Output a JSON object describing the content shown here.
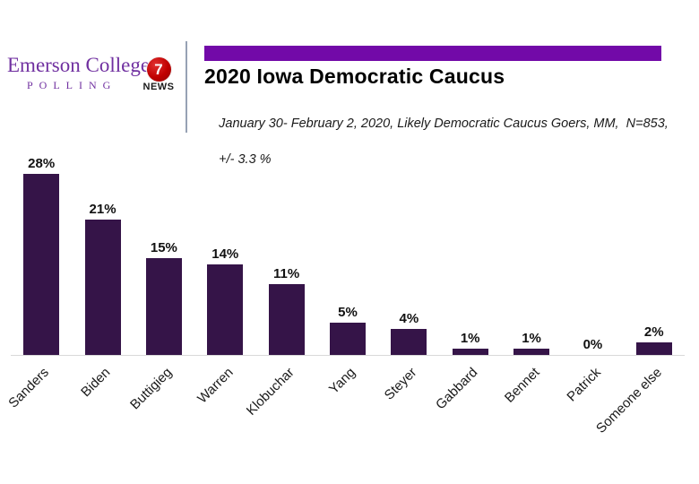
{
  "branding": {
    "emerson_name": "Emerson College",
    "emerson_sub": "POLLING",
    "news7_number": "7",
    "news7_text": "NEWS"
  },
  "header": {
    "title": "2020 Iowa Democratic Caucus",
    "subtitle_line1": "January 30- February 2, 2020, Likely Democratic Caucus Goers, MM,  N=853,",
    "subtitle_line2": "+/- 3.3 %"
  },
  "colors": {
    "accent_purple": "#7209A8",
    "bar_purple": "#351448",
    "emerson_purple": "#7030A0",
    "news_red": "#C00000",
    "axis_line": "#D9D9D9"
  },
  "chart_data": {
    "type": "bar",
    "title": "2020 Iowa Democratic Caucus",
    "subtitle": "January 30- February 2, 2020, Likely Democratic Caucus Goers, MM,  N=853, +/- 3.3 %",
    "categories": [
      "Sanders",
      "Biden",
      "Buttigieg",
      "Warren",
      "Klobuchar",
      "Yang",
      "Steyer",
      "Gabbard",
      "Bennet",
      "Patrick",
      "Someone else"
    ],
    "values": [
      28,
      21,
      15,
      14,
      11,
      5,
      4,
      1,
      1,
      0,
      2
    ],
    "value_labels": [
      "28%",
      "21%",
      "15%",
      "14%",
      "11%",
      "5%",
      "4%",
      "1%",
      "1%",
      "0%",
      "2%"
    ],
    "xlabel": "",
    "ylabel": "",
    "ylim": [
      0,
      30
    ],
    "grid": false,
    "legend": false,
    "bar_color": "#351448",
    "data_labels": "above bars",
    "x_tick_rotation_deg": 45
  }
}
